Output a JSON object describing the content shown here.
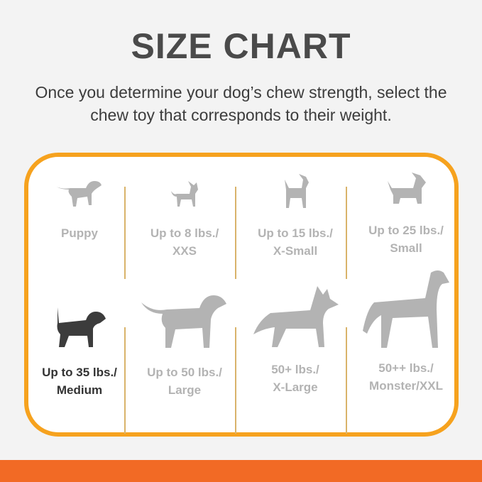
{
  "title": "SIZE CHART",
  "subtitle": "Once you determine your dog’s chew strength, select the chew toy that corresponds to their weight.",
  "colors": {
    "border": "#f6a21e",
    "bottom_bar": "#f26a25",
    "inactive": "#b3b3b3",
    "active": "#333333"
  },
  "sizes": [
    {
      "line1": "Puppy",
      "line2": "",
      "icon": "puppy-icon",
      "selected": false
    },
    {
      "line1": "Up to 8 lbs./",
      "line2": "XXS",
      "icon": "chihuahua-icon",
      "selected": false
    },
    {
      "line1": "Up to 15 lbs./",
      "line2": "X-Small",
      "icon": "min-pin-icon",
      "selected": false
    },
    {
      "line1": "Up to 25 lbs./",
      "line2": "Small",
      "icon": "terrier-icon",
      "selected": false
    },
    {
      "line1": "Up to 35 lbs./",
      "line2": "Medium",
      "icon": "beagle-icon",
      "selected": true
    },
    {
      "line1": "Up to 50 lbs./",
      "line2": "Large",
      "icon": "labrador-icon",
      "selected": false
    },
    {
      "line1": "50+ lbs./",
      "line2": "X-Large",
      "icon": "shepherd-icon",
      "selected": false
    },
    {
      "line1": "50++ lbs./",
      "line2": "Monster/XXL",
      "icon": "great-dane-icon",
      "selected": false
    }
  ]
}
